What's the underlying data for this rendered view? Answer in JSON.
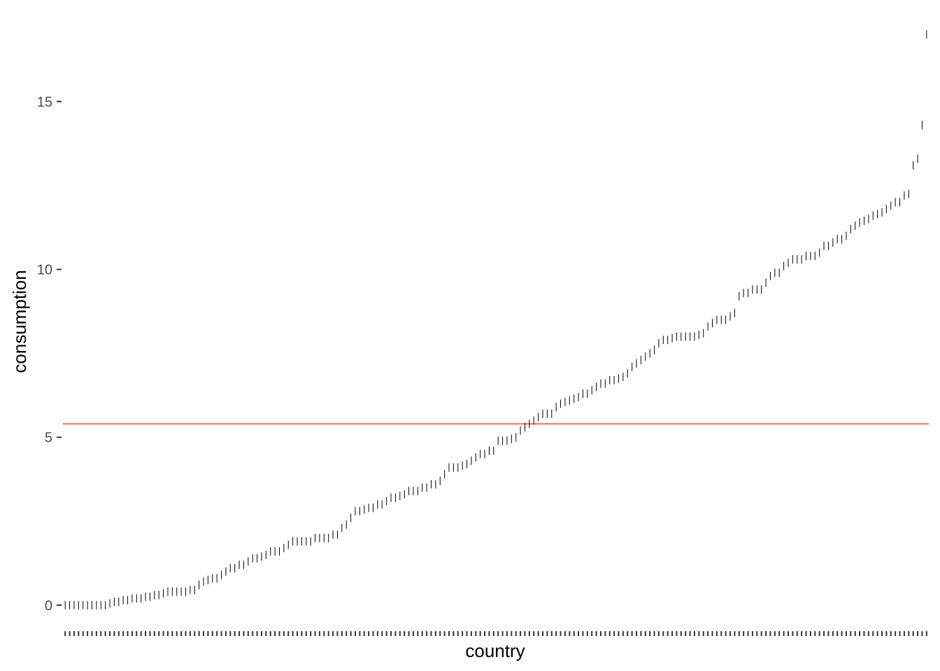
{
  "chart_data": {
    "type": "scatter",
    "marker": "vertical-tick",
    "xlabel": "country",
    "ylabel": "consumption",
    "x_tick_labels_shown": false,
    "ylim": [
      -0.4,
      17.4
    ],
    "y_ticks": [
      0,
      5,
      10,
      15
    ],
    "y_tick_labels": [
      "0",
      "5",
      "10",
      "15"
    ],
    "grid": false,
    "legend": "none",
    "reference_line": {
      "y": 5.4,
      "color": "#F8766D"
    },
    "point_color": "#000000",
    "values": [
      0.0,
      0.0,
      0.0,
      0.0,
      0.0,
      0.0,
      0.0,
      0.0,
      0.0,
      0.0,
      0.05,
      0.1,
      0.1,
      0.15,
      0.15,
      0.2,
      0.2,
      0.2,
      0.25,
      0.25,
      0.3,
      0.3,
      0.35,
      0.4,
      0.4,
      0.4,
      0.4,
      0.4,
      0.45,
      0.45,
      0.6,
      0.7,
      0.75,
      0.8,
      0.8,
      0.9,
      1.0,
      1.1,
      1.1,
      1.2,
      1.2,
      1.3,
      1.4,
      1.4,
      1.45,
      1.5,
      1.6,
      1.6,
      1.6,
      1.7,
      1.8,
      1.9,
      1.9,
      1.9,
      1.9,
      1.9,
      2.0,
      2.0,
      2.0,
      2.0,
      2.1,
      2.1,
      2.3,
      2.4,
      2.6,
      2.8,
      2.8,
      2.85,
      2.9,
      2.9,
      3.0,
      3.0,
      3.1,
      3.2,
      3.2,
      3.25,
      3.3,
      3.4,
      3.4,
      3.4,
      3.5,
      3.5,
      3.6,
      3.6,
      3.7,
      3.9,
      4.1,
      4.1,
      4.1,
      4.15,
      4.2,
      4.3,
      4.4,
      4.5,
      4.5,
      4.6,
      4.6,
      4.9,
      4.9,
      4.9,
      4.95,
      5.0,
      5.2,
      5.3,
      5.4,
      5.5,
      5.6,
      5.7,
      5.7,
      5.7,
      5.9,
      6.0,
      6.05,
      6.1,
      6.15,
      6.2,
      6.3,
      6.3,
      6.4,
      6.5,
      6.6,
      6.6,
      6.7,
      6.7,
      6.75,
      6.8,
      6.9,
      7.1,
      7.2,
      7.3,
      7.4,
      7.5,
      7.6,
      7.8,
      7.9,
      7.9,
      7.95,
      8.0,
      8.0,
      8.0,
      8.0,
      8.0,
      8.05,
      8.1,
      8.3,
      8.4,
      8.5,
      8.5,
      8.5,
      8.6,
      8.7,
      9.2,
      9.3,
      9.3,
      9.4,
      9.4,
      9.4,
      9.6,
      9.8,
      9.9,
      9.9,
      10.1,
      10.2,
      10.3,
      10.3,
      10.3,
      10.4,
      10.4,
      10.4,
      10.5,
      10.7,
      10.7,
      10.8,
      10.9,
      10.9,
      11.0,
      11.2,
      11.3,
      11.4,
      11.45,
      11.5,
      11.6,
      11.65,
      11.7,
      11.8,
      11.9,
      12.0,
      12.0,
      12.2,
      12.25,
      13.1,
      13.3,
      14.3,
      17.0
    ]
  }
}
